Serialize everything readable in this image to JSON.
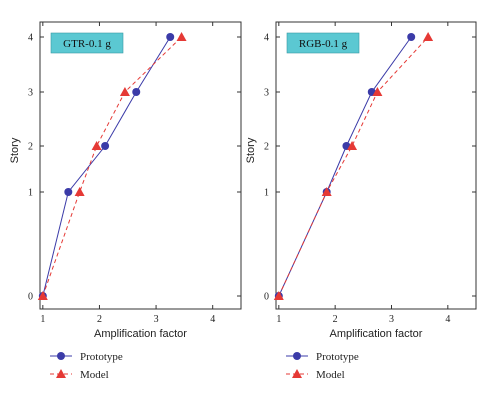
{
  "chart_data": [
    {
      "type": "line",
      "title": "GTR-0.1 g",
      "xlabel": "Amplification factor",
      "ylabel": "Story",
      "xlim": [
        0.95,
        4.5
      ],
      "xticks": [
        1,
        2,
        3,
        4
      ],
      "ylim": [
        -0.05,
        4.1
      ],
      "yticks": [
        0,
        1,
        2,
        3,
        4
      ],
      "y_axis": "non-linear",
      "grid": false,
      "legend_position": "below",
      "series": [
        {
          "name": "Prototype",
          "color": "#3b3ba8",
          "marker": "circle",
          "line": "solid",
          "x": [
            1.0,
            1.45,
            2.1,
            2.65,
            3.25
          ],
          "y": [
            0,
            1,
            2,
            3,
            4
          ]
        },
        {
          "name": "Model",
          "color": "#e53935",
          "marker": "triangle",
          "line": "dashed",
          "x": [
            1.0,
            1.65,
            1.95,
            2.45,
            3.45
          ],
          "y": [
            0,
            1,
            2,
            3,
            4
          ]
        }
      ]
    },
    {
      "type": "line",
      "title": "RGB-0.1 g",
      "xlabel": "Amplification factor",
      "ylabel": "Story",
      "xlim": [
        0.95,
        4.5
      ],
      "xticks": [
        1,
        2,
        3,
        4
      ],
      "ylim": [
        -0.05,
        4.1
      ],
      "yticks": [
        0,
        1,
        2,
        3,
        4
      ],
      "y_axis": "non-linear",
      "grid": false,
      "legend_position": "below",
      "series": [
        {
          "name": "Prototype",
          "color": "#3b3ba8",
          "marker": "circle",
          "line": "solid",
          "x": [
            1.0,
            1.85,
            2.2,
            2.65,
            3.35
          ],
          "y": [
            0,
            1,
            2,
            3,
            4
          ]
        },
        {
          "name": "Model",
          "color": "#e53935",
          "marker": "triangle",
          "line": "dashed",
          "x": [
            1.0,
            1.85,
            2.3,
            2.75,
            3.65
          ],
          "y": [
            0,
            1,
            2,
            3,
            4
          ]
        }
      ]
    }
  ],
  "style": {
    "title_box_color": "#5bc8d2",
    "axis_color": "#333333"
  }
}
